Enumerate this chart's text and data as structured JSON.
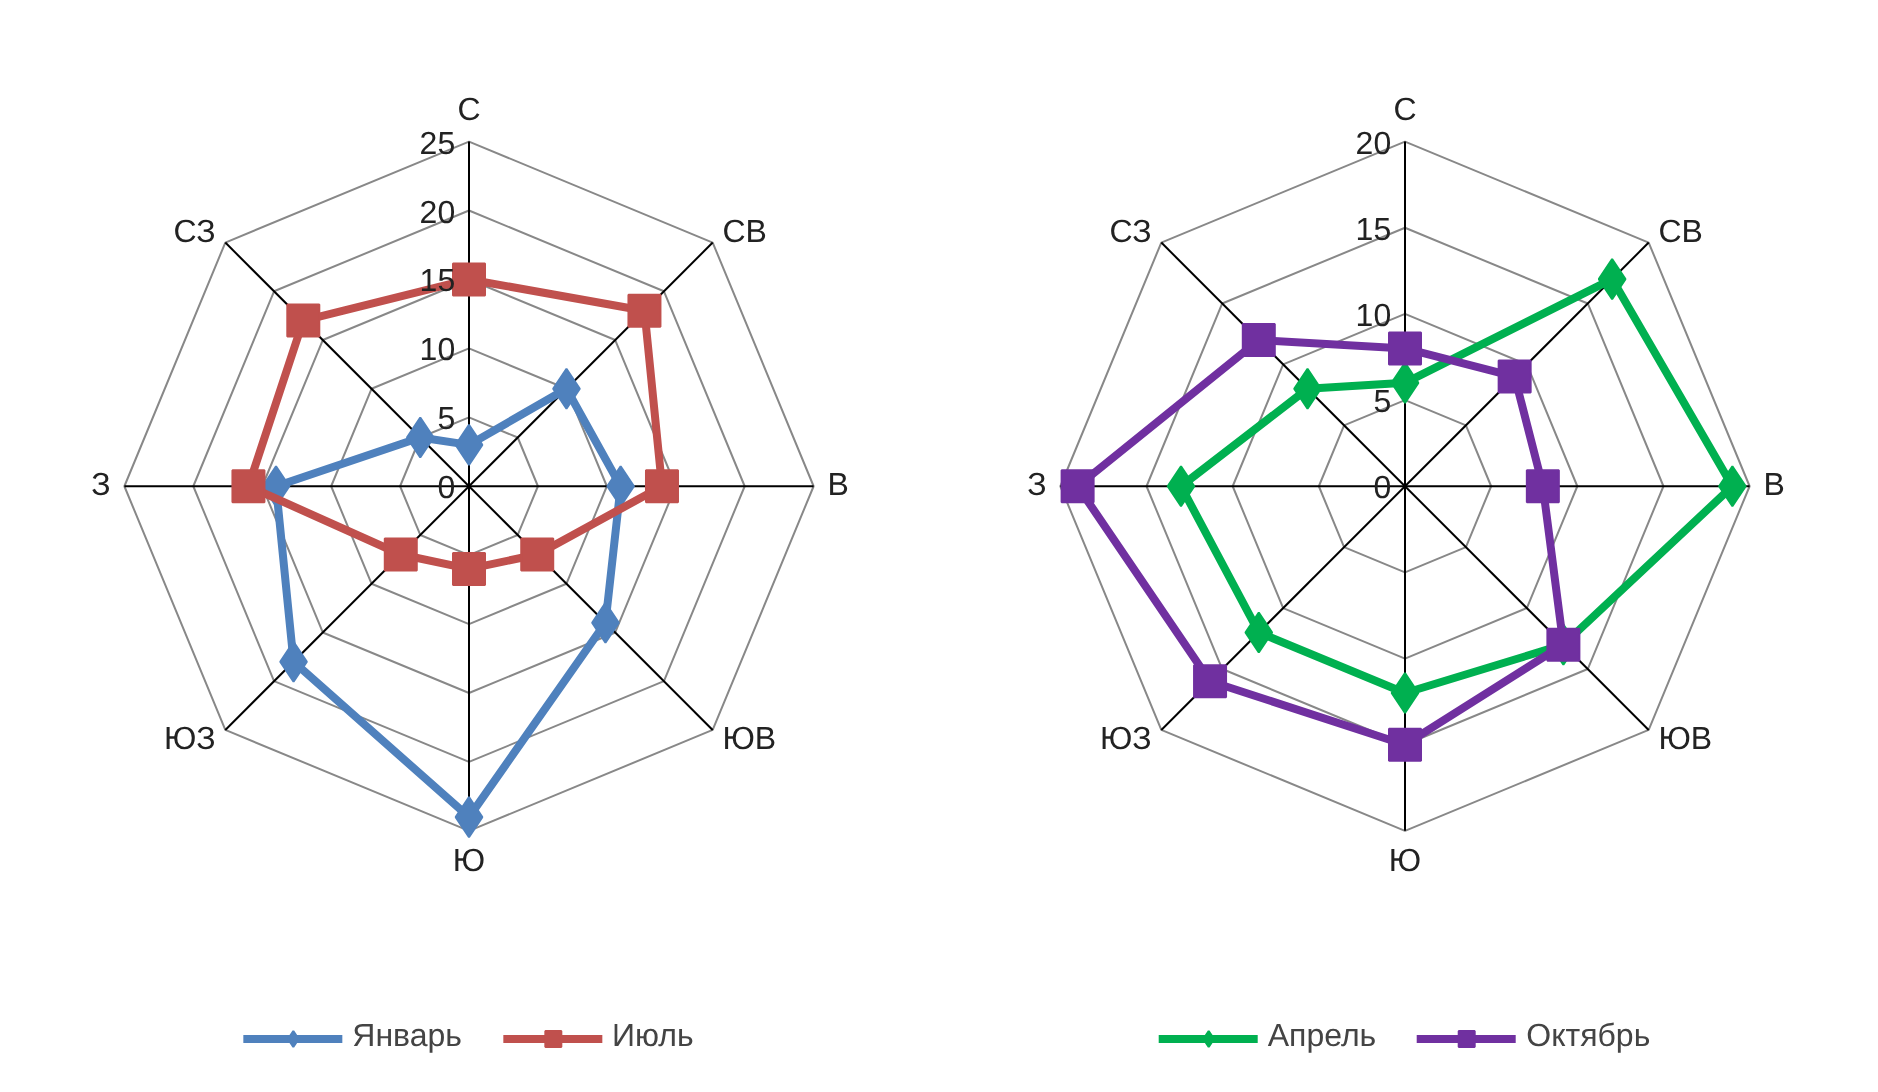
{
  "chart_data": [
    {
      "type": "radar",
      "categories": [
        "С",
        "СВ",
        "В",
        "ЮВ",
        "Ю",
        "ЮЗ",
        "З",
        "СЗ"
      ],
      "ylim": [
        0,
        25
      ],
      "yticks": [
        0,
        5,
        10,
        15,
        20,
        25
      ],
      "grid": true,
      "legend": "bottom",
      "series": [
        {
          "name": "Январь",
          "color": "#4f81bd",
          "marker": "diamond",
          "values": [
            3,
            10,
            11,
            14,
            24,
            18,
            14,
            5
          ]
        },
        {
          "name": "Июль",
          "color": "#c0504d",
          "marker": "square",
          "values": [
            15,
            18,
            14,
            7,
            6,
            7,
            16,
            17
          ]
        }
      ]
    },
    {
      "type": "radar",
      "categories": [
        "С",
        "СВ",
        "В",
        "ЮВ",
        "Ю",
        "ЮЗ",
        "З",
        "СЗ"
      ],
      "ylim": [
        0,
        20
      ],
      "yticks": [
        0,
        5,
        10,
        15,
        20
      ],
      "grid": true,
      "legend": "bottom",
      "series": [
        {
          "name": "Апрель",
          "color": "#00b050",
          "marker": "diamond",
          "values": [
            6,
            17,
            19,
            13,
            12,
            12,
            13,
            8
          ]
        },
        {
          "name": "Октябрь",
          "color": "#7030a0",
          "marker": "square",
          "values": [
            8,
            9,
            8,
            13,
            15,
            16,
            19,
            12
          ]
        }
      ]
    }
  ]
}
